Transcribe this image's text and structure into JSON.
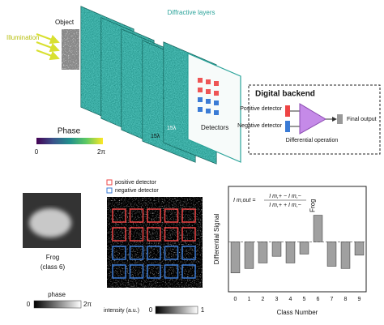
{
  "diagram": {
    "object": "Object",
    "illumination": "Illumination",
    "layers": "Diffractive layers",
    "detectors": "Detectors",
    "phase_title": "Phase",
    "phase_min": "0",
    "phase_max": "2π",
    "pitch_1": "15λ",
    "pitch_2": "15λ",
    "backend": {
      "title": "Digital backend",
      "positive": "Positive detector",
      "negative": "Negative detector",
      "operation": "Differential operation",
      "output": "Final output"
    }
  },
  "example": {
    "caption": "Frog",
    "class": "(class 6)",
    "phase_label": "phase",
    "phase_min": "0",
    "phase_max": "2π",
    "legend_positive": "positive detector",
    "legend_negative": "negative detector",
    "intensity_label": "intensity (a.u.)",
    "intensity_min": "0",
    "intensity_max": "1"
  },
  "chart_data": {
    "type": "bar",
    "categories": [
      "0",
      "1",
      "2",
      "3",
      "4",
      "5",
      "6",
      "7",
      "8",
      "9"
    ],
    "values": [
      -0.28,
      -0.24,
      -0.19,
      -0.13,
      -0.19,
      -0.11,
      0.24,
      -0.22,
      -0.24,
      -0.12
    ],
    "color": "#a0a0a0",
    "ylim": [
      -0.45,
      0.5
    ],
    "xlabel": "Class Number",
    "ylabel": "Differential Signal",
    "annotation": "Frog",
    "formula": {
      "lhs": "I m,out =",
      "numerator": "I m,+ − I m,−",
      "denominator": "I m,+ + I m,−"
    }
  }
}
